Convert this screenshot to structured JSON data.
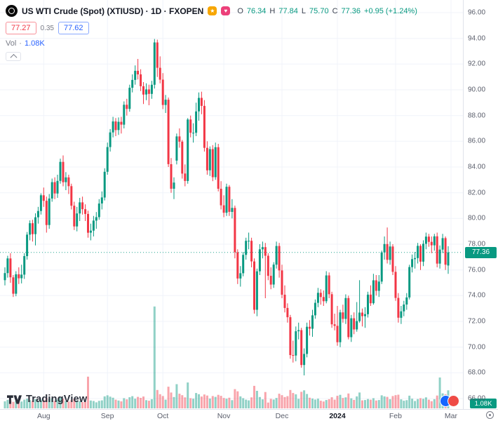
{
  "header": {
    "symbol_title": "US WTI Crude (Spot) (XTIUSD) · 1D · FXOPEN",
    "badge_star": "★",
    "badge_heart": "♥",
    "ohlc": {
      "open_label": "O",
      "open": "76.34",
      "high_label": "H",
      "high": "77.84",
      "low_label": "L",
      "low": "75.70",
      "close_label": "C",
      "close": "77.36",
      "change": "+0.95 (+1.24%)"
    },
    "bid": "77.27",
    "spread": "0.35",
    "ask": "77.62",
    "vol_label": "Vol",
    "vol_sep": "·",
    "vol_value": "1.08K"
  },
  "price_axis": {
    "ticks": [
      "96.00",
      "94.00",
      "92.00",
      "90.00",
      "88.00",
      "86.00",
      "84.00",
      "82.00",
      "80.00",
      "78.00",
      "76.00",
      "74.00",
      "72.00",
      "70.00",
      "68.00",
      "66.00"
    ],
    "price_badge": "77.36",
    "volume_badge": "1.08K"
  },
  "footer": {
    "logo_text": "TradingView"
  },
  "colors": {
    "up": "#089981",
    "down": "#f23645",
    "accent_blue": "#2962ff",
    "sell_red": "#f23645",
    "grid": "#f0f3fa",
    "axis_text": "#5a5e6b",
    "badge_teal": "#089981"
  },
  "chart_data": {
    "type": "candlestick",
    "title": "US WTI Crude (Spot)",
    "ticker": "XTIUSD",
    "interval": "1D",
    "exchange": "FXOPEN",
    "ylim": [
      66.0,
      96.4
    ],
    "grid": true,
    "price_line": 77.36,
    "last_change": 0.95,
    "last_change_pct": 1.24,
    "ohlc_format": [
      "open",
      "high",
      "low",
      "close",
      "volume_k"
    ],
    "month_ticks": [
      {
        "label": "Aug",
        "index": 14,
        "emphasis": false
      },
      {
        "label": "Sep",
        "index": 37,
        "emphasis": false
      },
      {
        "label": "Oct",
        "index": 57,
        "emphasis": false
      },
      {
        "label": "Nov",
        "index": 79,
        "emphasis": false
      },
      {
        "label": "Dec",
        "index": 100,
        "emphasis": false
      },
      {
        "label": "2024",
        "index": 120,
        "emphasis": true
      },
      {
        "label": "Feb",
        "index": 141,
        "emphasis": false
      },
      {
        "label": "Mar",
        "index": 161,
        "emphasis": false
      }
    ],
    "candles": [
      [
        75.2,
        76.2,
        74.8,
        75.75,
        0.42
      ],
      [
        75.75,
        77.1,
        75.4,
        76.89,
        0.51
      ],
      [
        76.89,
        77.3,
        75.0,
        75.42,
        0.48
      ],
      [
        75.42,
        75.6,
        73.9,
        74.15,
        0.39
      ],
      [
        74.15,
        75.9,
        73.95,
        75.66,
        0.44
      ],
      [
        75.66,
        76.2,
        74.9,
        75.35,
        0.37
      ],
      [
        75.35,
        76.4,
        74.95,
        75.63,
        0.41
      ],
      [
        75.63,
        77.3,
        75.3,
        77.07,
        0.52
      ],
      [
        77.07,
        78.95,
        76.8,
        78.74,
        0.58
      ],
      [
        78.74,
        79.85,
        78.3,
        79.63,
        0.49
      ],
      [
        79.63,
        79.9,
        78.2,
        78.78,
        0.46
      ],
      [
        78.78,
        80.4,
        77.9,
        80.09,
        0.55
      ],
      [
        80.09,
        80.9,
        79.6,
        80.58,
        0.47
      ],
      [
        80.58,
        81.95,
        80.3,
        81.8,
        0.53
      ],
      [
        81.8,
        82.4,
        80.9,
        81.37,
        0.5
      ],
      [
        81.37,
        81.7,
        78.9,
        79.49,
        0.62
      ],
      [
        79.49,
        81.9,
        79.2,
        81.55,
        0.57
      ],
      [
        81.55,
        83.1,
        81.3,
        82.82,
        0.6
      ],
      [
        82.82,
        83.2,
        81.5,
        81.94,
        0.45
      ],
      [
        81.94,
        83.4,
        81.6,
        82.92,
        0.52
      ],
      [
        82.92,
        84.65,
        82.7,
        84.4,
        0.66
      ],
      [
        84.4,
        84.9,
        82.5,
        82.82,
        0.58
      ],
      [
        82.82,
        83.6,
        82.2,
        83.19,
        0.44
      ],
      [
        83.19,
        83.4,
        81.9,
        82.51,
        0.41
      ],
      [
        82.51,
        82.7,
        80.7,
        80.99,
        0.49
      ],
      [
        80.99,
        81.3,
        79.1,
        79.38,
        0.56
      ],
      [
        79.38,
        80.9,
        79.0,
        80.39,
        0.48
      ],
      [
        80.39,
        81.6,
        79.8,
        81.25,
        0.43
      ],
      [
        81.25,
        81.7,
        80.3,
        80.72,
        0.38
      ],
      [
        80.72,
        81.1,
        79.8,
        80.35,
        0.4
      ],
      [
        80.35,
        80.6,
        78.5,
        78.89,
        1.9
      ],
      [
        78.89,
        79.6,
        78.3,
        79.05,
        0.47
      ],
      [
        79.05,
        80.2,
        78.6,
        79.83,
        0.44
      ],
      [
        79.83,
        80.5,
        79.2,
        80.1,
        0.36
      ],
      [
        80.1,
        81.5,
        79.9,
        81.16,
        0.45
      ],
      [
        81.16,
        82.1,
        80.7,
        81.63,
        0.48
      ],
      [
        81.63,
        83.9,
        81.4,
        83.63,
        0.72
      ],
      [
        83.63,
        85.9,
        83.4,
        85.55,
        0.78
      ],
      [
        85.55,
        86.95,
        85.2,
        86.69,
        0.7
      ],
      [
        86.69,
        87.9,
        86.3,
        87.54,
        0.64
      ],
      [
        87.54,
        87.8,
        86.4,
        86.87,
        0.52
      ],
      [
        86.87,
        87.85,
        86.5,
        87.51,
        0.47
      ],
      [
        87.51,
        87.9,
        86.6,
        87.29,
        0.42
      ],
      [
        87.29,
        89.1,
        87.0,
        88.84,
        0.61
      ],
      [
        88.84,
        89.3,
        88.0,
        88.52,
        0.54
      ],
      [
        88.52,
        90.4,
        88.3,
        90.16,
        0.67
      ],
      [
        90.16,
        91.2,
        89.8,
        90.77,
        0.73
      ],
      [
        90.77,
        91.9,
        90.4,
        91.48,
        0.58
      ],
      [
        91.48,
        92.4,
        90.8,
        91.2,
        0.69
      ],
      [
        91.2,
        91.6,
        89.9,
        90.28,
        0.63
      ],
      [
        90.28,
        90.6,
        88.9,
        89.63,
        0.71
      ],
      [
        89.63,
        90.5,
        89.2,
        90.03,
        0.49
      ],
      [
        90.03,
        90.4,
        88.8,
        89.68,
        0.46
      ],
      [
        89.68,
        90.7,
        89.3,
        90.39,
        0.55
      ],
      [
        90.39,
        93.95,
        90.1,
        93.68,
        6.1
      ],
      [
        93.68,
        93.9,
        91.0,
        91.71,
        1.1
      ],
      [
        91.71,
        92.6,
        90.5,
        90.79,
        0.85
      ],
      [
        90.79,
        91.3,
        88.5,
        88.82,
        0.74
      ],
      [
        88.82,
        89.6,
        88.2,
        89.23,
        0.52
      ],
      [
        89.23,
        89.4,
        84.0,
        84.22,
        1.3
      ],
      [
        84.22,
        84.7,
        82.0,
        82.31,
        0.95
      ],
      [
        82.31,
        83.2,
        81.5,
        82.79,
        0.68
      ],
      [
        84.5,
        86.6,
        84.2,
        86.38,
        1.45
      ],
      [
        86.38,
        87.0,
        85.5,
        85.97,
        0.88
      ],
      [
        85.97,
        86.1,
        83.1,
        83.49,
        0.79
      ],
      [
        83.49,
        84.2,
        82.5,
        82.91,
        0.66
      ],
      [
        82.91,
        87.8,
        82.7,
        87.69,
        1.55
      ],
      [
        87.69,
        88.0,
        86.3,
        86.66,
        0.61
      ],
      [
        86.66,
        87.4,
        85.9,
        86.66,
        0.58
      ],
      [
        86.66,
        89.0,
        86.4,
        88.32,
        0.92
      ],
      [
        88.32,
        89.8,
        87.6,
        89.37,
        0.85
      ],
      [
        89.37,
        89.85,
        88.1,
        88.75,
        0.71
      ],
      [
        88.75,
        89.2,
        85.2,
        85.49,
        0.83
      ],
      [
        85.49,
        86.0,
        83.4,
        83.74,
        0.77
      ],
      [
        83.74,
        85.6,
        83.3,
        85.39,
        0.59
      ],
      [
        85.39,
        85.7,
        82.9,
        83.21,
        0.74
      ],
      [
        83.21,
        85.9,
        83.0,
        85.54,
        0.69
      ],
      [
        85.54,
        85.8,
        82.1,
        82.31,
        0.81
      ],
      [
        82.31,
        82.9,
        80.7,
        81.02,
        0.75
      ],
      [
        81.02,
        81.8,
        80.1,
        80.44,
        0.62
      ],
      [
        80.44,
        82.7,
        80.2,
        82.46,
        0.58
      ],
      [
        82.46,
        82.6,
        80.2,
        80.51,
        0.64
      ],
      [
        80.51,
        81.5,
        80.0,
        80.82,
        0.49
      ],
      [
        80.82,
        81.0,
        76.9,
        77.37,
        1.15
      ],
      [
        77.37,
        77.6,
        74.9,
        75.33,
        1.02
      ],
      [
        75.33,
        76.3,
        74.7,
        75.74,
        0.72
      ],
      [
        75.74,
        77.4,
        75.5,
        77.17,
        0.61
      ],
      [
        77.17,
        78.5,
        76.8,
        78.26,
        0.52
      ],
      [
        78.26,
        78.9,
        77.6,
        78.26,
        0.48
      ],
      [
        78.26,
        78.5,
        76.2,
        76.66,
        0.66
      ],
      [
        76.66,
        76.9,
        72.6,
        72.9,
        1.35
      ],
      [
        72.9,
        76.1,
        72.4,
        75.89,
        1.05
      ],
      [
        75.89,
        78.0,
        75.6,
        77.6,
        0.68
      ],
      [
        77.6,
        78.2,
        76.9,
        77.77,
        0.54
      ],
      [
        77.77,
        78.1,
        73.8,
        77.1,
        0.98
      ],
      [
        77.1,
        77.3,
        75.2,
        75.54,
        0.35
      ],
      [
        75.54,
        76.2,
        74.5,
        74.86,
        0.57
      ],
      [
        74.86,
        76.6,
        74.6,
        76.41,
        0.53
      ],
      [
        76.41,
        78.2,
        76.1,
        77.86,
        0.62
      ],
      [
        77.86,
        78.1,
        75.4,
        75.96,
        0.88
      ],
      [
        75.96,
        76.4,
        73.8,
        74.07,
        0.79
      ],
      [
        74.07,
        74.8,
        72.7,
        73.04,
        0.68
      ],
      [
        73.04,
        73.4,
        71.9,
        72.32,
        0.73
      ],
      [
        72.32,
        72.5,
        69.1,
        69.38,
        1.1
      ],
      [
        69.38,
        70.5,
        68.8,
        69.34,
        0.92
      ],
      [
        69.34,
        71.6,
        68.9,
        71.23,
        0.84
      ],
      [
        71.23,
        71.9,
        70.6,
        71.32,
        0.57
      ],
      [
        71.32,
        71.5,
        68.4,
        68.61,
        0.99
      ],
      [
        68.61,
        69.9,
        67.8,
        69.47,
        1.08
      ],
      [
        69.47,
        71.9,
        69.2,
        71.58,
        0.86
      ],
      [
        71.58,
        72.1,
        70.9,
        71.43,
        0.64
      ],
      [
        71.43,
        72.9,
        70.8,
        72.47,
        0.59
      ],
      [
        72.47,
        73.7,
        72.2,
        73.44,
        0.53
      ],
      [
        73.44,
        74.6,
        73.1,
        74.22,
        0.58
      ],
      [
        74.22,
        74.5,
        73.3,
        73.89,
        0.46
      ],
      [
        73.89,
        74.4,
        73.2,
        73.56,
        0.41
      ],
      [
        73.56,
        75.9,
        73.4,
        75.57,
        0.5
      ],
      [
        75.57,
        75.8,
        73.8,
        74.11,
        0.55
      ],
      [
        74.11,
        74.3,
        71.5,
        71.77,
        0.67
      ],
      [
        71.77,
        72.6,
        71.3,
        71.65,
        0.52
      ],
      [
        71.65,
        73.2,
        70.1,
        70.38,
        0.75
      ],
      [
        70.38,
        72.9,
        70.0,
        72.7,
        0.81
      ],
      [
        72.7,
        73.3,
        71.9,
        72.19,
        0.62
      ],
      [
        72.19,
        74.1,
        71.8,
        73.81,
        0.66
      ],
      [
        73.81,
        74.0,
        70.6,
        70.77,
        0.89
      ],
      [
        70.77,
        72.5,
        70.4,
        72.24,
        0.6
      ],
      [
        72.24,
        72.7,
        71.0,
        71.37,
        0.51
      ],
      [
        71.37,
        73.5,
        71.2,
        72.02,
        0.72
      ],
      [
        72.02,
        75.2,
        71.9,
        72.68,
        0.95
      ],
      [
        72.68,
        73.0,
        71.6,
        72.4,
        0.48
      ],
      [
        72.4,
        73.1,
        71.5,
        72.56,
        0.5
      ],
      [
        72.56,
        74.3,
        72.3,
        74.08,
        0.56
      ],
      [
        74.08,
        74.8,
        73.2,
        73.41,
        0.52
      ],
      [
        73.41,
        75.7,
        73.3,
        75.19,
        0.61
      ],
      [
        75.19,
        75.6,
        74.0,
        74.37,
        0.47
      ],
      [
        74.37,
        75.6,
        73.9,
        75.09,
        0.5
      ],
      [
        75.09,
        77.5,
        74.9,
        77.36,
        0.78
      ],
      [
        77.36,
        78.6,
        76.8,
        78.01,
        0.72
      ],
      [
        78.01,
        79.3,
        76.5,
        76.78,
        0.69
      ],
      [
        76.78,
        78.2,
        76.4,
        77.82,
        0.55
      ],
      [
        77.82,
        78.0,
        75.6,
        75.85,
        0.74
      ],
      [
        75.85,
        76.3,
        73.6,
        73.82,
        0.79
      ],
      [
        73.82,
        74.2,
        71.9,
        72.28,
        0.82
      ],
      [
        72.28,
        73.2,
        71.8,
        72.78,
        0.54
      ],
      [
        72.78,
        73.6,
        72.4,
        73.31,
        0.46
      ],
      [
        73.31,
        74.2,
        72.9,
        73.86,
        0.49
      ],
      [
        73.86,
        76.4,
        73.7,
        76.22,
        0.76
      ],
      [
        76.22,
        77.2,
        75.8,
        76.84,
        0.58
      ],
      [
        76.84,
        77.4,
        76.1,
        76.92,
        0.44
      ],
      [
        76.92,
        78.1,
        76.5,
        77.87,
        0.56
      ],
      [
        77.87,
        78.0,
        76.0,
        76.64,
        0.61
      ],
      [
        76.64,
        78.3,
        76.3,
        78.03,
        0.57
      ],
      [
        78.03,
        78.9,
        77.6,
        78.59,
        0.66
      ],
      [
        78.59,
        78.8,
        77.8,
        78.18,
        0.52
      ],
      [
        78.18,
        78.6,
        77.3,
        77.91,
        0.43
      ],
      [
        77.91,
        78.8,
        77.5,
        78.61,
        0.55
      ],
      [
        78.61,
        78.9,
        76.2,
        76.49,
        0.77
      ],
      [
        76.49,
        77.9,
        76.1,
        77.58,
        1.85
      ],
      [
        77.58,
        78.8,
        77.3,
        78.47,
        0.9
      ],
      [
        78.47,
        78.6,
        76.0,
        76.41,
        0.85
      ],
      [
        76.34,
        77.84,
        75.7,
        77.36,
        1.08
      ]
    ]
  }
}
